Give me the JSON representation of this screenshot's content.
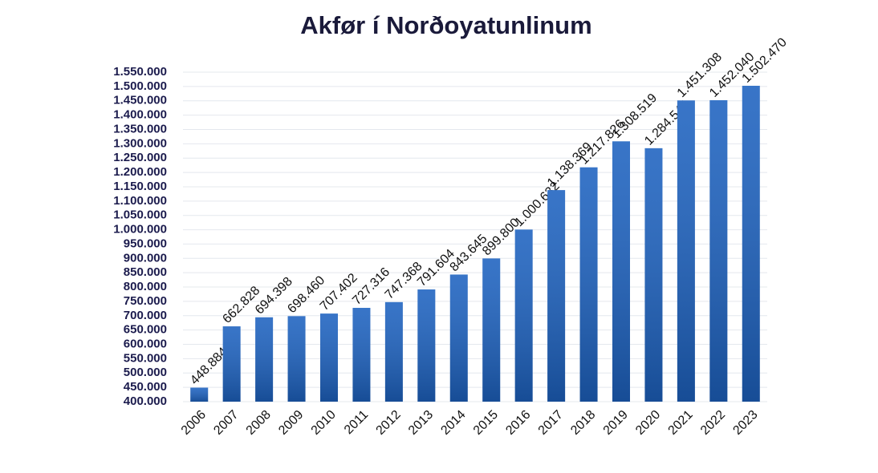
{
  "chart_data": {
    "type": "bar",
    "title": "Akfør í Norðoyatunlinum",
    "categories": [
      "2006",
      "2007",
      "2008",
      "2009",
      "2010",
      "2011",
      "2012",
      "2013",
      "2014",
      "2015",
      "2016",
      "2017",
      "2018",
      "2019",
      "2020",
      "2021",
      "2022",
      "2023"
    ],
    "values": [
      448884,
      662828,
      694398,
      698460,
      707402,
      727316,
      747368,
      791604,
      843645,
      899800,
      1000632,
      1138369,
      1217826,
      1308519,
      1284544,
      1451308,
      1452040,
      1502470
    ],
    "value_labels": [
      "448.884",
      "662.828",
      "694.398",
      "698.460",
      "707.402",
      "727.316",
      "747.368",
      "791.604",
      "843.645",
      "899.800",
      "1.000.632",
      "1.138.369",
      "1.217.826",
      "1.308.519",
      "1.284.544",
      "1.451.308",
      "1.452.040",
      "1.502.470"
    ],
    "color": "#1d62c0",
    "ylim": [
      400000,
      1550000
    ],
    "yticks": [
      {
        "value": 400000,
        "label": "400.000"
      },
      {
        "value": 450000,
        "label": "450.000"
      },
      {
        "value": 500000,
        "label": "500.000"
      },
      {
        "value": 550000,
        "label": "550.000"
      },
      {
        "value": 600000,
        "label": "600.000"
      },
      {
        "value": 650000,
        "label": "650.000"
      },
      {
        "value": 700000,
        "label": "700.000"
      },
      {
        "value": 750000,
        "label": "750.000"
      },
      {
        "value": 800000,
        "label": "800.000"
      },
      {
        "value": 850000,
        "label": "850.000"
      },
      {
        "value": 900000,
        "label": "900.000"
      },
      {
        "value": 950000,
        "label": "950.000"
      },
      {
        "value": 1000000,
        "label": "1.000.000"
      },
      {
        "value": 1050000,
        "label": "1.050.000"
      },
      {
        "value": 1100000,
        "label": "1.100.000"
      },
      {
        "value": 1150000,
        "label": "1.150.000"
      },
      {
        "value": 1200000,
        "label": "1.200.000"
      },
      {
        "value": 1250000,
        "label": "1.250.000"
      },
      {
        "value": 1300000,
        "label": "1.300.000"
      },
      {
        "value": 1350000,
        "label": "1.350.000"
      },
      {
        "value": 1400000,
        "label": "1.400.000"
      },
      {
        "value": 1450000,
        "label": "1.450.000"
      },
      {
        "value": 1500000,
        "label": "1.500.000"
      },
      {
        "value": 1550000,
        "label": "1.550.000"
      }
    ],
    "grid": true
  }
}
